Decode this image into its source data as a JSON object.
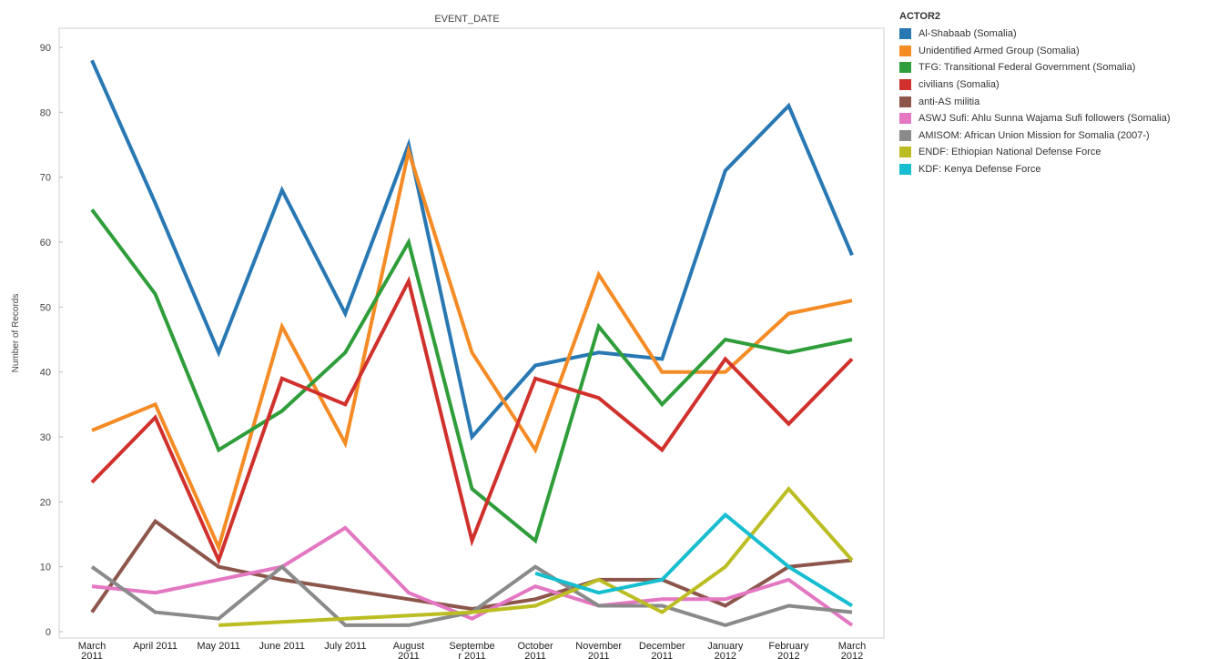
{
  "chart_data": {
    "type": "line",
    "title": "EVENT_DATE",
    "xlabel": "",
    "ylabel": "Number of Records",
    "ylim": [
      0,
      90
    ],
    "yticks": [
      0,
      10,
      20,
      30,
      40,
      50,
      60,
      70,
      80,
      90
    ],
    "grid": false,
    "legend_position": "right",
    "legend_title": "ACTOR2",
    "categories": [
      [
        "March",
        "2011"
      ],
      [
        "April 2011"
      ],
      [
        "May 2011"
      ],
      [
        "June 2011"
      ],
      [
        "July 2011"
      ],
      [
        "August",
        "2011"
      ],
      [
        "Septembe",
        "r 2011"
      ],
      [
        "October",
        "2011"
      ],
      [
        "November",
        "2011"
      ],
      [
        "December",
        "2011"
      ],
      [
        "January",
        "2012"
      ],
      [
        "February",
        "2012"
      ],
      [
        "March",
        "2012"
      ]
    ],
    "series": [
      {
        "name": "Al-Shabaab (Somalia)",
        "color": "#2878b4",
        "values": [
          88,
          66,
          43,
          68,
          49,
          75,
          30,
          41,
          43,
          42,
          71,
          81,
          58
        ]
      },
      {
        "name": "Unidentified Armed Group (Somalia)",
        "color": "#f58b25",
        "values": [
          31,
          35,
          13,
          47,
          29,
          74,
          43,
          28,
          55,
          40,
          40,
          49,
          51
        ]
      },
      {
        "name": "TFG: Transitional Federal Government (Somalia)",
        "color": "#2f9e3a",
        "values": [
          65,
          52,
          28,
          34,
          43,
          60,
          22,
          14,
          47,
          35,
          45,
          43,
          45
        ]
      },
      {
        "name": "civilians (Somalia)",
        "color": "#d0312d",
        "values": [
          23,
          33,
          11,
          39,
          35,
          54,
          14,
          39,
          36,
          28,
          42,
          32,
          42
        ]
      },
      {
        "name": "anti-AS militia",
        "color": "#8c564b",
        "values": [
          3,
          17,
          10,
          8,
          6.5,
          5,
          3.5,
          5,
          8,
          8,
          4,
          10,
          11
        ]
      },
      {
        "name": "ASWJ Sufi: Ahlu Sunna Wajama Sufi followers (Somalia)",
        "color": "#e377c2",
        "values": [
          7,
          6,
          8,
          10,
          16,
          6,
          2,
          7,
          4,
          5,
          5,
          8,
          1
        ]
      },
      {
        "name": "AMISOM: African Union Mission for Somalia (2007-)",
        "color": "#8a8a8a",
        "values": [
          10,
          3,
          2,
          10,
          1,
          1,
          3,
          10,
          4,
          4,
          1,
          4,
          3
        ]
      },
      {
        "name": "ENDF: Ethiopian National Defense Force",
        "color": "#bcbd22",
        "values": [
          null,
          null,
          1,
          1.5,
          2,
          2.5,
          3,
          4,
          8,
          3,
          10,
          22,
          11
        ]
      },
      {
        "name": "KDF: Kenya Defense Force",
        "color": "#17becf",
        "values": [
          null,
          null,
          null,
          null,
          null,
          null,
          null,
          9,
          6,
          8,
          18,
          10,
          4
        ]
      }
    ]
  }
}
